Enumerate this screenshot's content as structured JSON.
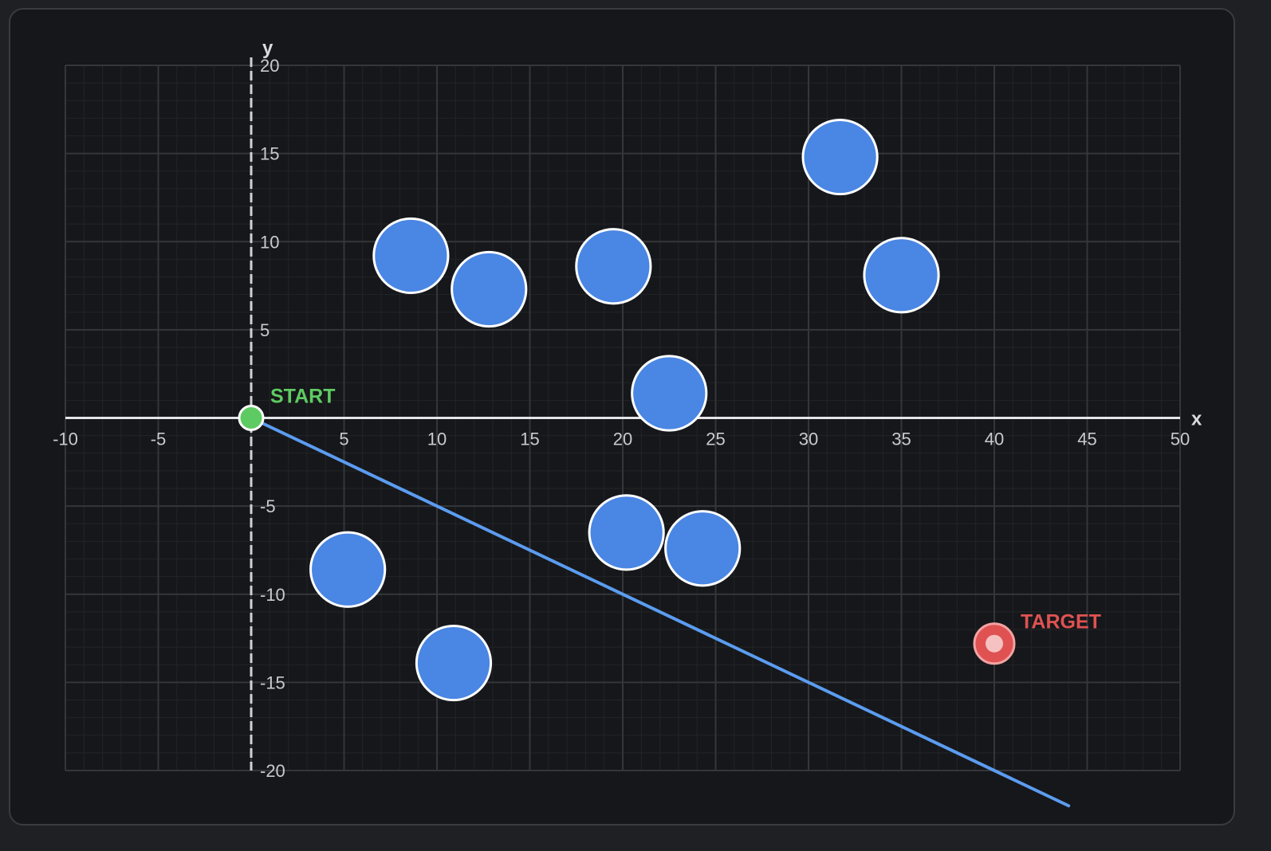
{
  "board": {
    "x_axis_label": "x",
    "y_axis_label": "y",
    "x_range": [
      -10,
      50
    ],
    "y_range": [
      -20,
      20
    ],
    "minor_grid_step": 1,
    "major_grid_step": 5,
    "x_ticks": [
      "-10",
      "-5",
      "5",
      "10",
      "15",
      "20",
      "25",
      "30",
      "35",
      "40",
      "45",
      "50"
    ],
    "x_tick_values": [
      -10,
      -5,
      5,
      10,
      15,
      20,
      25,
      30,
      35,
      40,
      45,
      50
    ],
    "y_ticks": [
      "20",
      "15",
      "10",
      "5",
      "-5",
      "-10",
      "-15",
      "-20"
    ],
    "y_tick_values": [
      20,
      15,
      10,
      5,
      -5,
      -10,
      -15,
      -20
    ]
  },
  "start": {
    "label": "START",
    "x": 0,
    "y": 0,
    "color": "#5ecb62"
  },
  "target": {
    "label": "TARGET",
    "x": 40,
    "y": -12.8,
    "color": "#e05252"
  },
  "trajectory": {
    "color": "#5b9cf0",
    "from": [
      0,
      0
    ],
    "to": [
      44,
      -22
    ]
  },
  "obstacle_color": "#4a86e3",
  "obstacles": [
    {
      "x": 8.6,
      "y": 9.2,
      "r": 2
    },
    {
      "x": 12.8,
      "y": 7.3,
      "r": 2
    },
    {
      "x": 19.5,
      "y": 8.6,
      "r": 2
    },
    {
      "x": 31.7,
      "y": 14.8,
      "r": 2
    },
    {
      "x": 35,
      "y": 8.1,
      "r": 2
    },
    {
      "x": 22.5,
      "y": 1.4,
      "r": 2
    },
    {
      "x": 20.2,
      "y": -6.5,
      "r": 2
    },
    {
      "x": 24.3,
      "y": -7.4,
      "r": 2
    },
    {
      "x": 5.2,
      "y": -8.6,
      "r": 2
    },
    {
      "x": 10.9,
      "y": -13.9,
      "r": 2
    }
  ]
}
